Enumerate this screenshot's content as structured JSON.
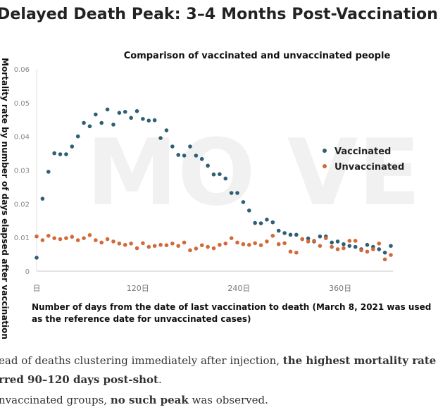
{
  "headline": "Delayed Death Peak: 3–4 Months Post-Vaccination",
  "watermark": "MO VE",
  "chart_data": {
    "type": "scatter",
    "title": "Comparison of vaccinated and unvaccinated people",
    "xlabel_line1": "Number of days from the date of last vaccination to death (March 8, 2021 was used",
    "xlabel_line2": "as the reference date for unvaccinated cases)",
    "ylabel": "Mortality rate by number of days elapsed after vaccination",
    "xlim": [
      0,
      420
    ],
    "ylim": [
      0,
      0.06
    ],
    "x_ticks": [
      {
        "value": 0,
        "label": "日"
      },
      {
        "value": 120,
        "label": "120日"
      },
      {
        "value": 240,
        "label": "240日"
      },
      {
        "value": 360,
        "label": "360日"
      }
    ],
    "y_ticks": [
      {
        "value": 0,
        "label": "0"
      },
      {
        "value": 0.01,
        "label": "0.01"
      },
      {
        "value": 0.02,
        "label": "0.02"
      },
      {
        "value": 0.03,
        "label": "0.03"
      },
      {
        "value": 0.04,
        "label": "0.04"
      },
      {
        "value": 0.05,
        "label": "0.05"
      },
      {
        "value": 0.06,
        "label": "0.06"
      }
    ],
    "legend_position": "right",
    "series": [
      {
        "name": "Vaccinated",
        "color": "#2e5f74",
        "points": [
          [
            0,
            0.004
          ],
          [
            7,
            0.0215
          ],
          [
            14,
            0.0295
          ],
          [
            21,
            0.035
          ],
          [
            28,
            0.0347
          ],
          [
            35,
            0.0347
          ],
          [
            42,
            0.037
          ],
          [
            49,
            0.04
          ],
          [
            56,
            0.044
          ],
          [
            63,
            0.043
          ],
          [
            70,
            0.0465
          ],
          [
            77,
            0.044
          ],
          [
            84,
            0.048
          ],
          [
            91,
            0.0435
          ],
          [
            98,
            0.047
          ],
          [
            105,
            0.0473
          ],
          [
            112,
            0.0455
          ],
          [
            119,
            0.0475
          ],
          [
            126,
            0.0452
          ],
          [
            133,
            0.0447
          ],
          [
            140,
            0.0448
          ],
          [
            147,
            0.0395
          ],
          [
            154,
            0.0418
          ],
          [
            161,
            0.037
          ],
          [
            168,
            0.0345
          ],
          [
            175,
            0.0343
          ],
          [
            182,
            0.037
          ],
          [
            189,
            0.0343
          ],
          [
            196,
            0.0333
          ],
          [
            203,
            0.0313
          ],
          [
            210,
            0.0287
          ],
          [
            217,
            0.0288
          ],
          [
            224,
            0.0275
          ],
          [
            231,
            0.0232
          ],
          [
            238,
            0.0232
          ],
          [
            245,
            0.0205
          ],
          [
            252,
            0.018
          ],
          [
            259,
            0.0143
          ],
          [
            266,
            0.0142
          ],
          [
            273,
            0.0153
          ],
          [
            280,
            0.0145
          ],
          [
            287,
            0.012
          ],
          [
            294,
            0.0113
          ],
          [
            301,
            0.0108
          ],
          [
            308,
            0.0108
          ],
          [
            315,
            0.0095
          ],
          [
            322,
            0.0097
          ],
          [
            329,
            0.0088
          ],
          [
            336,
            0.0103
          ],
          [
            343,
            0.0103
          ],
          [
            350,
            0.0085
          ],
          [
            357,
            0.0088
          ],
          [
            364,
            0.008
          ],
          [
            371,
            0.0075
          ],
          [
            378,
            0.0072
          ],
          [
            385,
            0.0065
          ],
          [
            392,
            0.0078
          ],
          [
            399,
            0.0072
          ],
          [
            406,
            0.0065
          ],
          [
            413,
            0.0055
          ],
          [
            420,
            0.0075
          ]
        ]
      },
      {
        "name": "Unvaccinated",
        "color": "#d2693a",
        "points": [
          [
            0,
            0.0103
          ],
          [
            7,
            0.0092
          ],
          [
            14,
            0.0105
          ],
          [
            21,
            0.0098
          ],
          [
            28,
            0.0095
          ],
          [
            35,
            0.0098
          ],
          [
            42,
            0.0102
          ],
          [
            49,
            0.0092
          ],
          [
            56,
            0.0098
          ],
          [
            63,
            0.0107
          ],
          [
            70,
            0.0092
          ],
          [
            77,
            0.0085
          ],
          [
            84,
            0.0095
          ],
          [
            91,
            0.0088
          ],
          [
            98,
            0.0082
          ],
          [
            105,
            0.0078
          ],
          [
            112,
            0.0082
          ],
          [
            119,
            0.0068
          ],
          [
            126,
            0.0083
          ],
          [
            133,
            0.0072
          ],
          [
            140,
            0.0075
          ],
          [
            147,
            0.0078
          ],
          [
            154,
            0.0077
          ],
          [
            161,
            0.0082
          ],
          [
            168,
            0.0075
          ],
          [
            175,
            0.0085
          ],
          [
            182,
            0.0062
          ],
          [
            189,
            0.0067
          ],
          [
            196,
            0.0077
          ],
          [
            203,
            0.0072
          ],
          [
            210,
            0.0068
          ],
          [
            217,
            0.0078
          ],
          [
            224,
            0.0082
          ],
          [
            231,
            0.0098
          ],
          [
            238,
            0.0085
          ],
          [
            245,
            0.008
          ],
          [
            252,
            0.0078
          ],
          [
            259,
            0.0083
          ],
          [
            266,
            0.0077
          ],
          [
            273,
            0.0088
          ],
          [
            280,
            0.0105
          ],
          [
            287,
            0.008
          ],
          [
            294,
            0.0083
          ],
          [
            301,
            0.0058
          ],
          [
            308,
            0.0055
          ],
          [
            315,
            0.0095
          ],
          [
            322,
            0.0088
          ],
          [
            329,
            0.009
          ],
          [
            336,
            0.0075
          ],
          [
            343,
            0.0098
          ],
          [
            350,
            0.0072
          ],
          [
            357,
            0.0065
          ],
          [
            364,
            0.0068
          ],
          [
            371,
            0.009
          ],
          [
            378,
            0.009
          ],
          [
            385,
            0.0062
          ],
          [
            392,
            0.0058
          ],
          [
            399,
            0.0065
          ],
          [
            406,
            0.0082
          ],
          [
            413,
            0.0035
          ],
          [
            420,
            0.0048
          ]
        ]
      }
    ]
  },
  "caption": {
    "line1_a": "ead of deaths clustering immediately after injection, ",
    "line1_b": "the highest mortality rate",
    "line2_b": "rred 90–120 days post-shot",
    "line2_a": ".",
    "line3_a": "nvaccinated groups, ",
    "line3_b": "no such peak",
    "line3_c": " was observed."
  }
}
